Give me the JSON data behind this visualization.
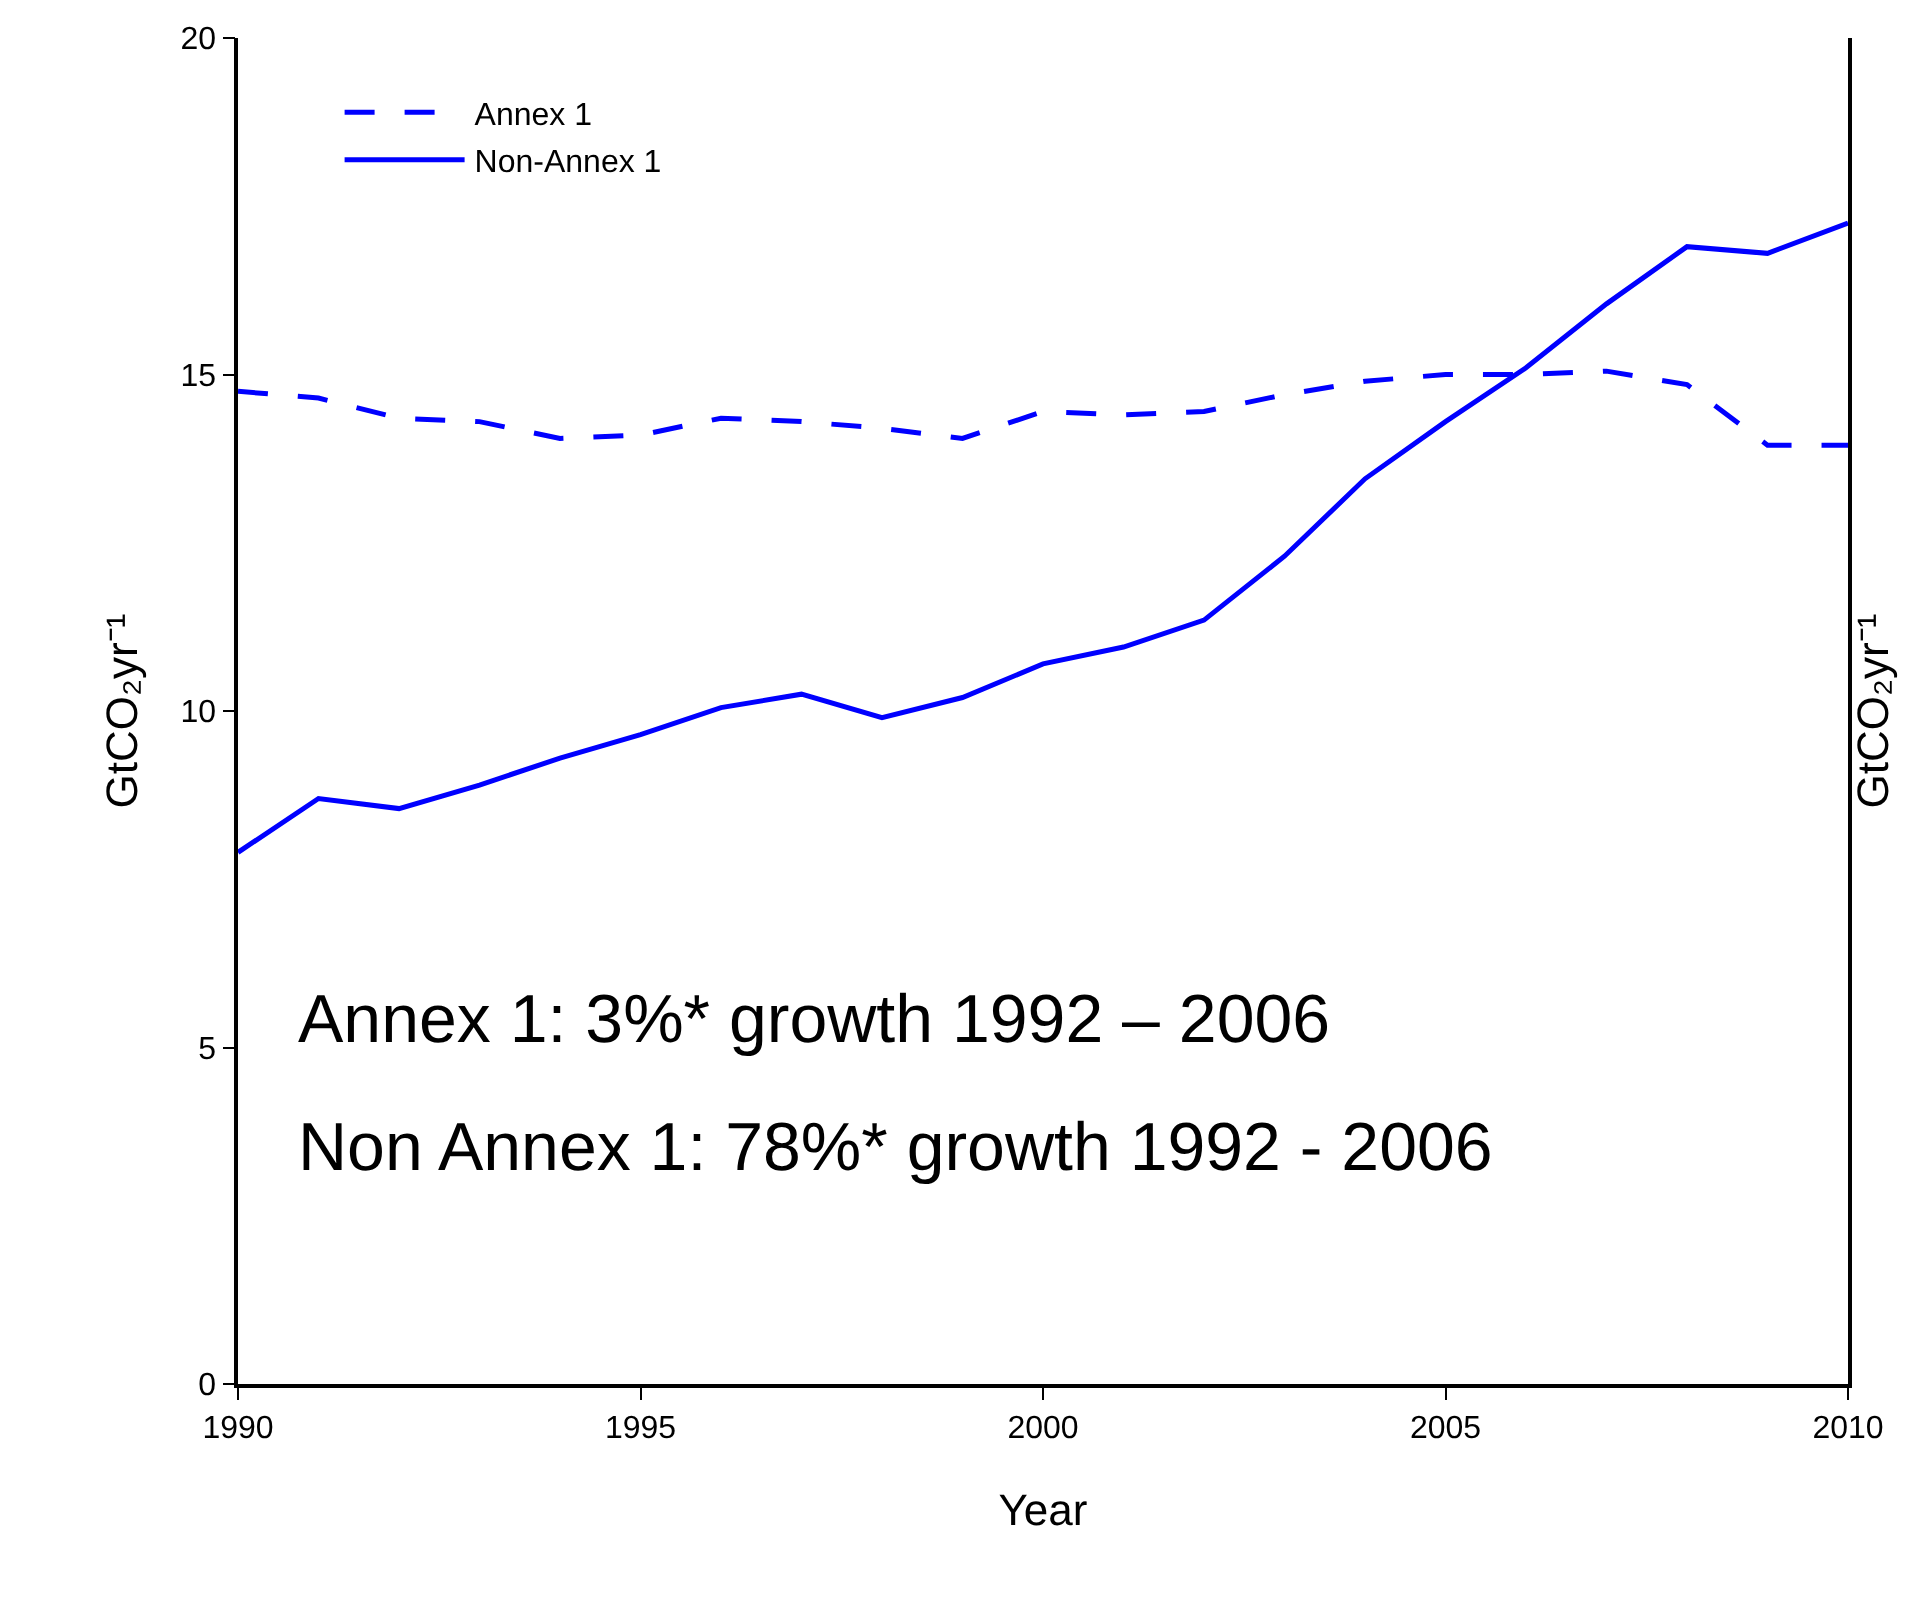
{
  "chart_data": {
    "type": "line",
    "xlabel": "Year",
    "ylabel": "GtCO₂yr⁻¹",
    "y2label": "GtCO₂yr⁻¹",
    "x": [
      1990,
      1991,
      1992,
      1993,
      1994,
      1995,
      1996,
      1997,
      1998,
      1999,
      2000,
      2001,
      2002,
      2003,
      2004,
      2005,
      2006,
      2007,
      2008,
      2009,
      2010
    ],
    "series": [
      {
        "name": "Annex 1",
        "color": "#0000ff",
        "line_style": "dashed",
        "values": [
          14.75,
          14.65,
          14.35,
          14.3,
          14.05,
          14.1,
          14.35,
          14.3,
          14.2,
          14.05,
          14.45,
          14.4,
          14.45,
          14.7,
          14.9,
          15.0,
          15.0,
          15.05,
          14.85,
          13.95,
          13.95
        ]
      },
      {
        "name": "Non-Annex 1",
        "color": "#0000ff",
        "line_style": "solid",
        "values": [
          7.9,
          8.7,
          8.55,
          8.9,
          9.3,
          9.65,
          10.05,
          10.25,
          9.9,
          10.2,
          10.7,
          10.95,
          11.35,
          12.3,
          13.45,
          14.3,
          15.1,
          16.05,
          16.9,
          16.8,
          17.25
        ]
      }
    ],
    "xlim": [
      1990,
      2010
    ],
    "xticks": [
      1990,
      1995,
      2000,
      2005,
      2010
    ],
    "ylim": [
      0,
      20
    ],
    "yticks": [
      0,
      5,
      10,
      15,
      20
    ],
    "legend": "top left",
    "marker": "none",
    "annotations": [
      "Annex 1: 3%* growth 1992 – 2006",
      "Non Annex 1: 78%* growth 1992 - 2006"
    ]
  }
}
